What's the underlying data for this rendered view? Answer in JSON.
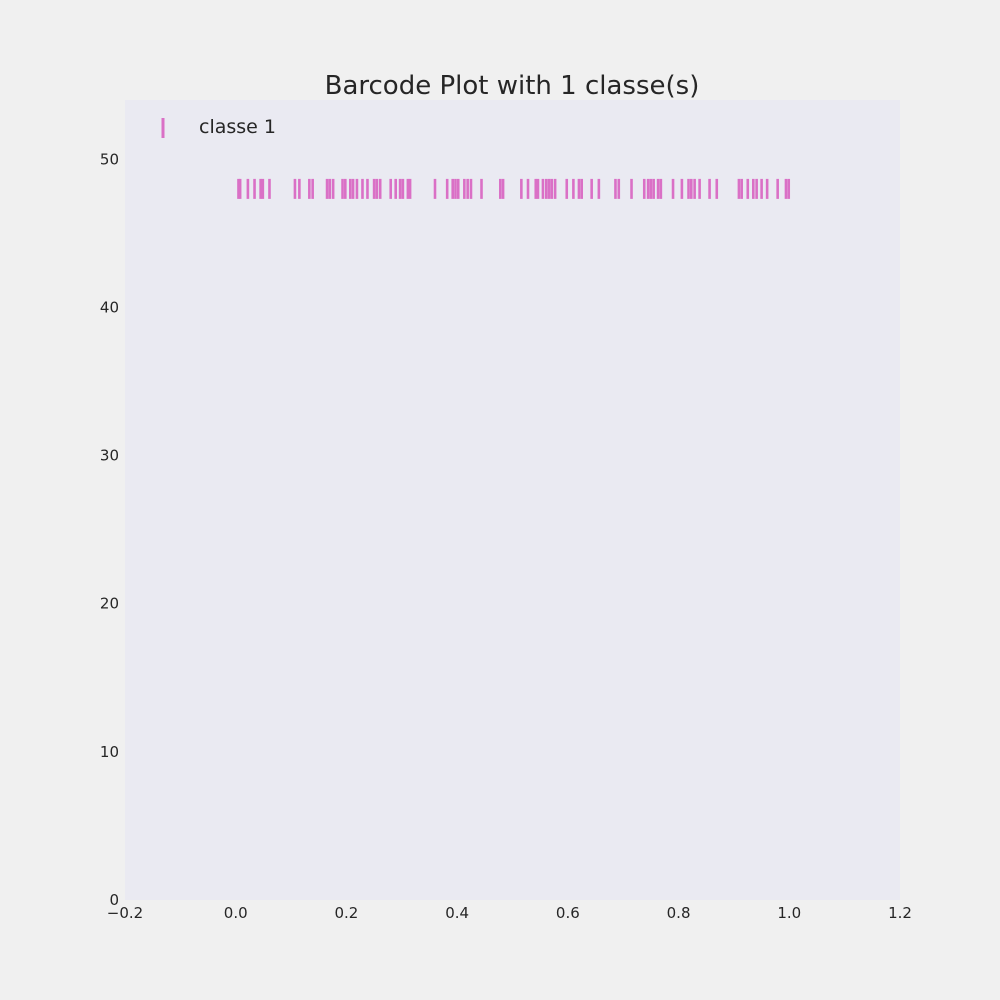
{
  "chart_data": {
    "type": "scatter",
    "marker": "vertical-bar",
    "title": "Barcode Plot with 1 classe(s)",
    "xlabel": "",
    "ylabel": "",
    "xlim": [
      -0.2,
      1.2
    ],
    "ylim": [
      0,
      54
    ],
    "xticks": [
      -0.2,
      0.0,
      0.2,
      0.4,
      0.6,
      0.8,
      1.0,
      1.2
    ],
    "xtick_labels": [
      "−0.2",
      "0.0",
      "0.2",
      "0.4",
      "0.6",
      "0.8",
      "1.0",
      "1.2"
    ],
    "yticks": [
      0,
      10,
      20,
      30,
      40,
      50
    ],
    "ytick_labels": [
      "0",
      "10",
      "20",
      "30",
      "40",
      "50"
    ],
    "grid": false,
    "legend": {
      "placement": "top-left",
      "entries": [
        "classe 1"
      ]
    },
    "colors": {
      "series": "#da70c6",
      "plot_bg": "#eaeaf2",
      "page_bg": "#f0f0f0"
    },
    "series": [
      {
        "name": "classe 1",
        "y": 48,
        "x": [
          0.005,
          0.008,
          0.022,
          0.034,
          0.045,
          0.049,
          0.061,
          0.107,
          0.115,
          0.133,
          0.139,
          0.165,
          0.17,
          0.176,
          0.193,
          0.198,
          0.207,
          0.212,
          0.219,
          0.229,
          0.238,
          0.25,
          0.255,
          0.261,
          0.28,
          0.289,
          0.297,
          0.302,
          0.311,
          0.315,
          0.36,
          0.382,
          0.392,
          0.397,
          0.402,
          0.413,
          0.419,
          0.425,
          0.444,
          0.478,
          0.483,
          0.516,
          0.528,
          0.542,
          0.546,
          0.555,
          0.561,
          0.566,
          0.571,
          0.577,
          0.598,
          0.61,
          0.62,
          0.625,
          0.643,
          0.656,
          0.686,
          0.692,
          0.715,
          0.738,
          0.745,
          0.75,
          0.755,
          0.763,
          0.768,
          0.79,
          0.806,
          0.818,
          0.823,
          0.829,
          0.838,
          0.856,
          0.869,
          0.909,
          0.914,
          0.925,
          0.935,
          0.941,
          0.95,
          0.96,
          0.979,
          0.994,
          0.999
        ]
      }
    ]
  }
}
